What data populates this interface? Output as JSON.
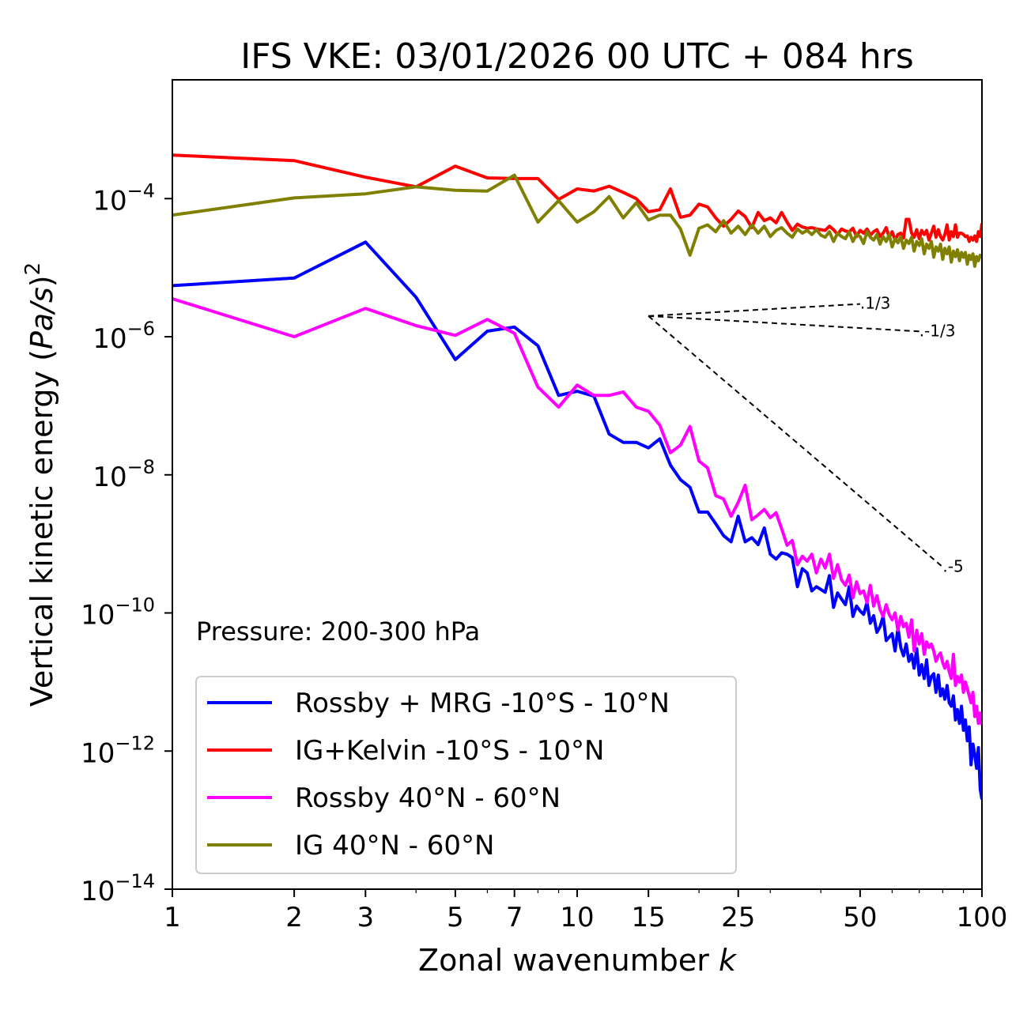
{
  "chart_data": {
    "type": "line",
    "title": "IFS VKE: 03/01/2026 00 UTC + 084 hrs",
    "xlabel": "Zonal wavenumber k",
    "ylabel": "Vertical kinetic energy (Pa/s)^2",
    "xlabel_main": "Zonal wavenumber ",
    "xlabel_italic": "k",
    "ylabel_main": "Vertical kinetic energy (",
    "ylabel_italic": "Pa/s",
    "ylabel_close": ")",
    "ylabel_sup": "2",
    "xscale": "log",
    "yscale": "log",
    "xlim": [
      1,
      100
    ],
    "ylim_log10": [
      -14,
      -2.28
    ],
    "xticks": [
      1,
      2,
      3,
      5,
      7,
      10,
      15,
      25,
      50,
      100
    ],
    "xtick_labels": [
      "1",
      "2",
      "3",
      "5",
      "7",
      "10",
      "15",
      "25",
      "50",
      "100"
    ],
    "yticks_log10": [
      -4,
      -6,
      -8,
      -10,
      -12,
      -14
    ],
    "ytick_labels": [
      {
        "base": "10",
        "exp": "−4"
      },
      {
        "base": "10",
        "exp": "−6"
      },
      {
        "base": "10",
        "exp": "−8"
      },
      {
        "base": "10",
        "exp": "−10"
      },
      {
        "base": "10",
        "exp": "−12"
      },
      {
        "base": "10",
        "exp": "−14"
      }
    ],
    "grid": false,
    "annotation": "Pressure: 200-300 hPa",
    "legend_position": "lower-left",
    "reference_slopes": {
      "origin_k": 15,
      "origin_log10": -5.7,
      "lines": [
        {
          "slope": 0.3333,
          "end_k": 50,
          "label": "1/3"
        },
        {
          "slope": -0.3333,
          "end_k": 70,
          "label": "-1/3"
        },
        {
          "slope": -5,
          "end_k": 80,
          "label": "-5"
        }
      ]
    },
    "x": [
      1,
      2,
      3,
      4,
      5,
      6,
      7,
      8,
      9,
      10,
      11,
      12,
      13,
      14,
      15,
      16,
      17,
      18,
      19,
      20,
      21,
      22,
      23,
      24,
      25,
      26,
      27,
      28,
      29,
      30,
      31,
      32,
      33,
      34,
      35,
      36,
      37,
      38,
      39,
      40,
      41,
      42,
      43,
      44,
      45,
      46,
      47,
      48,
      49,
      50,
      51,
      52,
      53,
      54,
      55,
      56,
      57,
      58,
      59,
      60,
      61,
      62,
      63,
      64,
      65,
      66,
      67,
      68,
      69,
      70,
      71,
      72,
      73,
      74,
      75,
      76,
      77,
      78,
      79,
      80,
      81,
      82,
      83,
      84,
      85,
      86,
      87,
      88,
      89,
      90,
      91,
      92,
      93,
      94,
      95,
      96,
      97,
      98,
      99,
      100
    ],
    "series": [
      {
        "name": "Rossby + MRG -10°S - 10°N",
        "color": "#0000ff",
        "log10_values": [
          -5.26,
          -5.15,
          -4.63,
          -5.43,
          -6.33,
          -5.92,
          -5.86,
          -6.13,
          -6.85,
          -6.79,
          -6.86,
          -7.41,
          -7.53,
          -7.53,
          -7.61,
          -7.48,
          -7.86,
          -8.07,
          -8.18,
          -8.54,
          -8.54,
          -8.71,
          -8.88,
          -8.97,
          -8.6,
          -8.97,
          -8.91,
          -9.01,
          -8.77,
          -9.15,
          -9.22,
          -9.13,
          -9.15,
          -9.2,
          -9.62,
          -9.36,
          -9.42,
          -9.68,
          -9.62,
          -9.66,
          -9.7,
          -9.46,
          -9.92,
          -9.71,
          -9.8,
          -9.88,
          -9.62,
          -10.05,
          -9.9,
          -9.97,
          -10.02,
          -9.85,
          -10.15,
          -10.04,
          -10.28,
          -10.2,
          -10.05,
          -10.4,
          -10.35,
          -10.3,
          -10.55,
          -10.22,
          -10.5,
          -10.62,
          -10.45,
          -10.7,
          -10.6,
          -10.8,
          -10.52,
          -10.9,
          -10.75,
          -10.95,
          -10.68,
          -11.05,
          -10.92,
          -10.88,
          -11.15,
          -10.9,
          -11.2,
          -11.1,
          -11.25,
          -11.05,
          -11.3,
          -11.35,
          -11.2,
          -11.55,
          -11.4,
          -11.6,
          -11.35,
          -11.7,
          -11.55,
          -11.85,
          -11.65,
          -12.2,
          -11.9,
          -12.05,
          -12.25,
          -11.95,
          -12.55,
          -12.7
        ]
      },
      {
        "name": "IG+Kelvin -10°S - 10°N",
        "color": "#ff0000",
        "log10_values": [
          -3.37,
          -3.45,
          -3.69,
          -3.83,
          -3.53,
          -3.7,
          -3.71,
          -3.71,
          -4.01,
          -3.86,
          -3.89,
          -3.82,
          -3.91,
          -4.0,
          -4.19,
          -4.16,
          -3.86,
          -4.27,
          -4.24,
          -4.08,
          -4.12,
          -4.28,
          -4.4,
          -4.3,
          -4.18,
          -4.26,
          -4.42,
          -4.2,
          -4.32,
          -4.28,
          -4.35,
          -4.2,
          -4.34,
          -4.46,
          -4.37,
          -4.41,
          -4.43,
          -4.42,
          -4.44,
          -4.45,
          -4.46,
          -4.4,
          -4.45,
          -4.52,
          -4.44,
          -4.47,
          -4.48,
          -4.43,
          -4.55,
          -4.46,
          -4.5,
          -4.44,
          -4.53,
          -4.48,
          -4.45,
          -4.55,
          -4.5,
          -4.42,
          -4.56,
          -4.48,
          -4.6,
          -4.52,
          -4.5,
          -4.57,
          -4.3,
          -4.3,
          -4.5,
          -4.56,
          -4.45,
          -4.58,
          -4.46,
          -4.52,
          -4.46,
          -4.6,
          -4.5,
          -4.4,
          -4.56,
          -4.45,
          -4.55,
          -4.6,
          -4.52,
          -4.38,
          -4.6,
          -4.48,
          -4.55,
          -4.38,
          -4.56,
          -4.5,
          -4.5,
          -4.52,
          -4.55,
          -4.54,
          -4.62,
          -4.56,
          -4.6,
          -4.54,
          -4.62,
          -4.48,
          -4.55,
          -4.36
        ]
      },
      {
        "name": "Rossby 40°N - 60°N",
        "color": "#ff00ff",
        "log10_values": [
          -5.45,
          -6.0,
          -5.59,
          -5.84,
          -5.98,
          -5.75,
          -5.95,
          -6.73,
          -7.02,
          -6.7,
          -6.85,
          -6.85,
          -6.8,
          -7.02,
          -7.08,
          -7.28,
          -7.68,
          -7.57,
          -7.3,
          -7.8,
          -7.9,
          -8.3,
          -8.35,
          -8.6,
          -8.4,
          -8.15,
          -8.65,
          -8.58,
          -8.5,
          -8.62,
          -8.55,
          -8.78,
          -9.02,
          -8.95,
          -9.3,
          -9.18,
          -9.25,
          -9.15,
          -9.42,
          -9.22,
          -9.35,
          -9.15,
          -9.5,
          -9.3,
          -9.52,
          -9.6,
          -9.45,
          -9.78,
          -9.55,
          -9.72,
          -9.68,
          -9.85,
          -9.6,
          -9.9,
          -9.75,
          -9.95,
          -10.05,
          -9.88,
          -10.02,
          -10.1,
          -10.0,
          -10.25,
          -10.05,
          -10.2,
          -10.15,
          -10.35,
          -10.1,
          -10.55,
          -10.25,
          -10.45,
          -10.3,
          -10.6,
          -10.42,
          -10.5,
          -10.45,
          -10.55,
          -10.7,
          -10.62,
          -10.58,
          -10.72,
          -10.8,
          -10.7,
          -10.85,
          -10.95,
          -10.6,
          -11.05,
          -10.92,
          -11.0,
          -10.9,
          -11.15,
          -11.0,
          -11.1,
          -11.2,
          -11.3,
          -11.15,
          -11.5,
          -11.35,
          -11.6,
          -11.45,
          -11.62
        ]
      },
      {
        "name": "IG 40°N - 60°N",
        "color": "#808000",
        "log10_values": [
          -4.24,
          -3.99,
          -3.93,
          -3.83,
          -3.88,
          -3.89,
          -3.66,
          -4.34,
          -4.03,
          -4.34,
          -4.19,
          -3.97,
          -4.28,
          -4.06,
          -4.31,
          -4.24,
          -4.24,
          -4.44,
          -4.82,
          -4.43,
          -4.38,
          -4.48,
          -4.32,
          -4.5,
          -4.4,
          -4.52,
          -4.38,
          -4.5,
          -4.4,
          -4.55,
          -4.46,
          -4.42,
          -4.5,
          -4.56,
          -4.44,
          -4.5,
          -4.46,
          -4.52,
          -4.45,
          -4.53,
          -4.56,
          -4.48,
          -4.62,
          -4.5,
          -4.55,
          -4.58,
          -4.48,
          -4.62,
          -4.52,
          -4.55,
          -4.65,
          -4.48,
          -4.56,
          -4.6,
          -4.52,
          -4.66,
          -4.55,
          -4.62,
          -4.52,
          -4.7,
          -4.58,
          -4.64,
          -4.55,
          -4.72,
          -4.6,
          -4.65,
          -4.56,
          -4.76,
          -4.62,
          -4.68,
          -4.58,
          -4.8,
          -4.66,
          -4.72,
          -4.62,
          -4.85,
          -4.7,
          -4.76,
          -4.66,
          -4.88,
          -4.72,
          -4.8,
          -4.7,
          -4.92,
          -4.76,
          -4.84,
          -4.74,
          -4.9,
          -4.78,
          -4.85,
          -4.78,
          -4.95,
          -4.82,
          -4.88,
          -4.8,
          -4.98,
          -4.84,
          -4.9,
          -4.82,
          -4.85
        ]
      }
    ]
  }
}
